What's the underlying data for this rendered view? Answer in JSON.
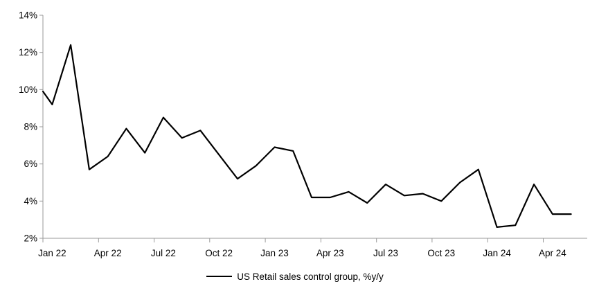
{
  "chart_data": {
    "type": "line",
    "title": "",
    "legend": {
      "label": "US Retail sales control group, %y/y",
      "position": "bottom-center"
    },
    "grid": false,
    "ylim": [
      2,
      14
    ],
    "y_ticks": [
      {
        "label": "14%",
        "value": 14
      },
      {
        "label": "12%",
        "value": 12
      },
      {
        "label": "10%",
        "value": 10
      },
      {
        "label": "8%",
        "value": 8
      },
      {
        "label": "6%",
        "value": 6
      },
      {
        "label": "4%",
        "value": 4
      },
      {
        "label": "2%",
        "value": 2
      }
    ],
    "x_tick_labels": [
      "Jan 22",
      "Apr 22",
      "Jul 22",
      "Oct 22",
      "Jan 23",
      "Apr 23",
      "Jul 23",
      "Oct 23",
      "Jan 24",
      "Apr 24"
    ],
    "x_tick_every": 3,
    "x": [
      "Jan 22",
      "Feb 22",
      "Mar 22",
      "Apr 22",
      "May 22",
      "Jun 22",
      "Jul 22",
      "Aug 22",
      "Sep 22",
      "Oct 22",
      "Nov 22",
      "Dec 22",
      "Jan 23",
      "Feb 23",
      "Mar 23",
      "Apr 23",
      "May 23",
      "Jun 23",
      "Jul 23",
      "Aug 23",
      "Sep 23",
      "Oct 23",
      "Nov 23",
      "Dec 23",
      "Jan 24",
      "Feb 24",
      "Mar 24",
      "Apr 24",
      "May 24"
    ],
    "values": [
      9.2,
      12.4,
      5.7,
      6.4,
      7.9,
      6.6,
      8.5,
      7.4,
      7.8,
      6.5,
      5.2,
      5.9,
      6.9,
      6.7,
      4.2,
      4.2,
      4.5,
      3.9,
      4.9,
      4.3,
      4.4,
      4.0,
      5.0,
      5.7,
      2.6,
      2.7,
      4.9,
      3.3,
      3.3
    ],
    "left_clip_value": 9.9,
    "colors": {
      "line": "#000000",
      "axis": "#9a9a9a",
      "text": "#000000"
    }
  }
}
